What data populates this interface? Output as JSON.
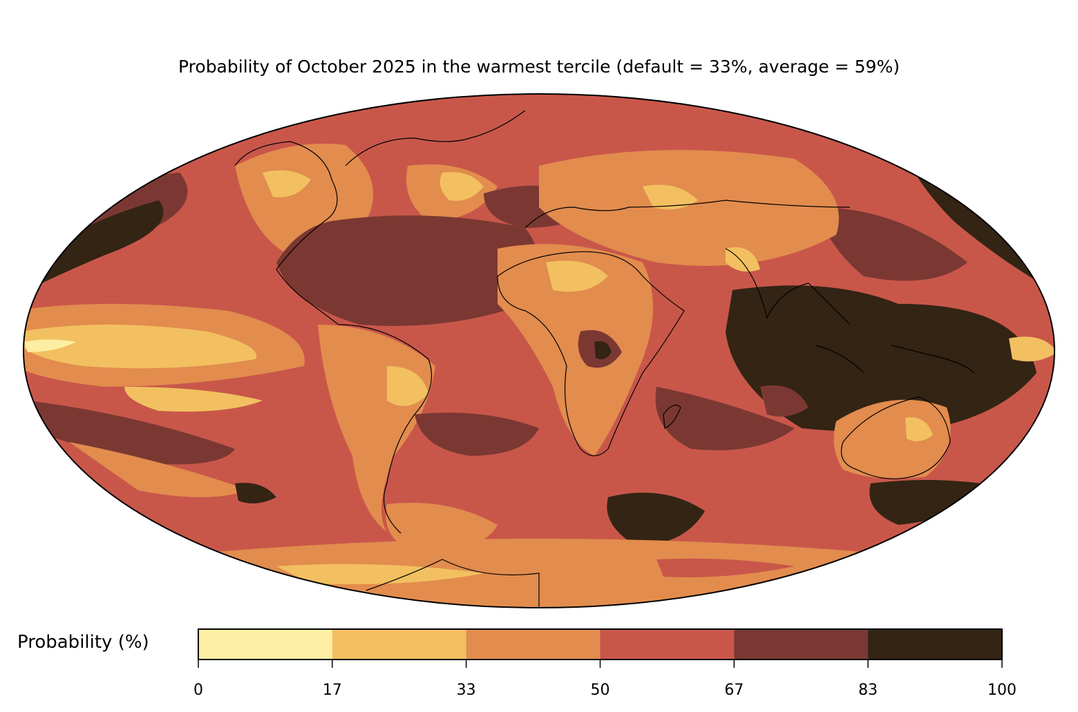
{
  "title": "Probability of October 2025 in the warmest tercile (default = 33%, average = 59%)",
  "colorbar": {
    "label": "Probability (%)",
    "ticks": [
      "0",
      "17",
      "33",
      "50",
      "67",
      "83",
      "100"
    ],
    "bins": [
      {
        "range": "0-17",
        "color": "#fdeea3"
      },
      {
        "range": "17-33",
        "color": "#f2c060"
      },
      {
        "range": "33-50",
        "color": "#e28c4e"
      },
      {
        "range": "50-67",
        "color": "#c8574a"
      },
      {
        "range": "67-83",
        "color": "#7b3832"
      },
      {
        "range": "83-100",
        "color": "#332414"
      }
    ]
  },
  "map": {
    "projection": "Mollweide",
    "variable": "probability of warmest tercile",
    "month": "October 2025"
  }
}
